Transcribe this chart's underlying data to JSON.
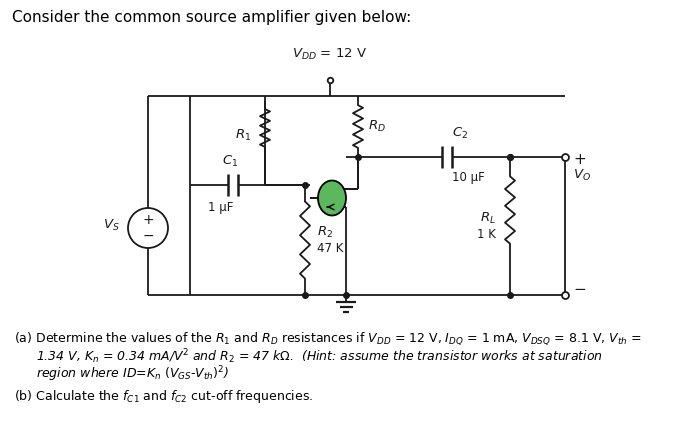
{
  "title": "Consider the common source amplifier given below:",
  "bg_color": "#ffffff",
  "line_color": "#1a1a1a",
  "mosfet_body_color": "#5cb85c",
  "figsize": [
    7.0,
    4.33
  ],
  "dpi": 100,
  "vdd_text": "V",
  "vdd_sub": "DD",
  "vdd_val": " = 12 V",
  "r1_label": "R",
  "r1_sub": "1",
  "rd_label": "R",
  "rd_sub": "D",
  "c1_label": "C",
  "c1_sub": "1",
  "c1_val": "1 μF",
  "c2_label": "C",
  "c2_sub": "2",
  "c2_val": "10 μF",
  "r2_label": "R",
  "r2_sub": "2",
  "r2_val": "47 K",
  "rl_label": "R",
  "rl_sub": "L",
  "rl_val": "1 K",
  "vo_label": "V",
  "vo_sub": "O",
  "vs_label": "V",
  "vs_sub": "S",
  "part_a_line1": "(a) Determine the values of the R",
  "part_a_line1b": " and R",
  "part_a_line2": "1.34 V, K",
  "part_b": "(b) Calculate the f",
  "text_color": "#000000"
}
